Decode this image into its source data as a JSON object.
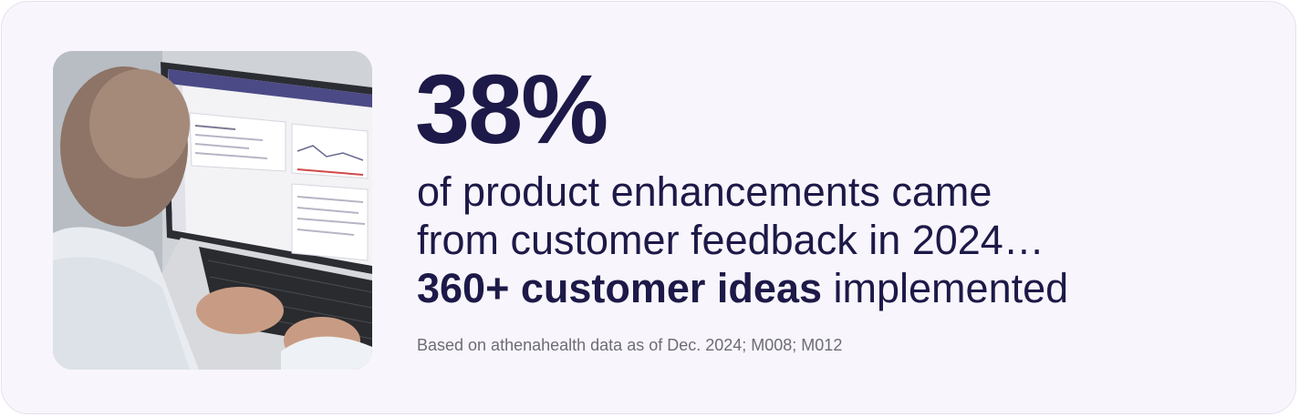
{
  "stat": {
    "value": "38%"
  },
  "description": {
    "line1": "of product enhancements came",
    "line2": "from customer feedback in 2024…",
    "line3_bold": "360+ customer ideas",
    "line3_rest": " implemented"
  },
  "footnote": "Based on athenahealth data as of Dec. 2024; M008; M012",
  "colors": {
    "card_background": "#f8f6fc",
    "heading": "#1d1948",
    "footnote": "#6d6b76",
    "screen_header": "#4b4a86"
  }
}
